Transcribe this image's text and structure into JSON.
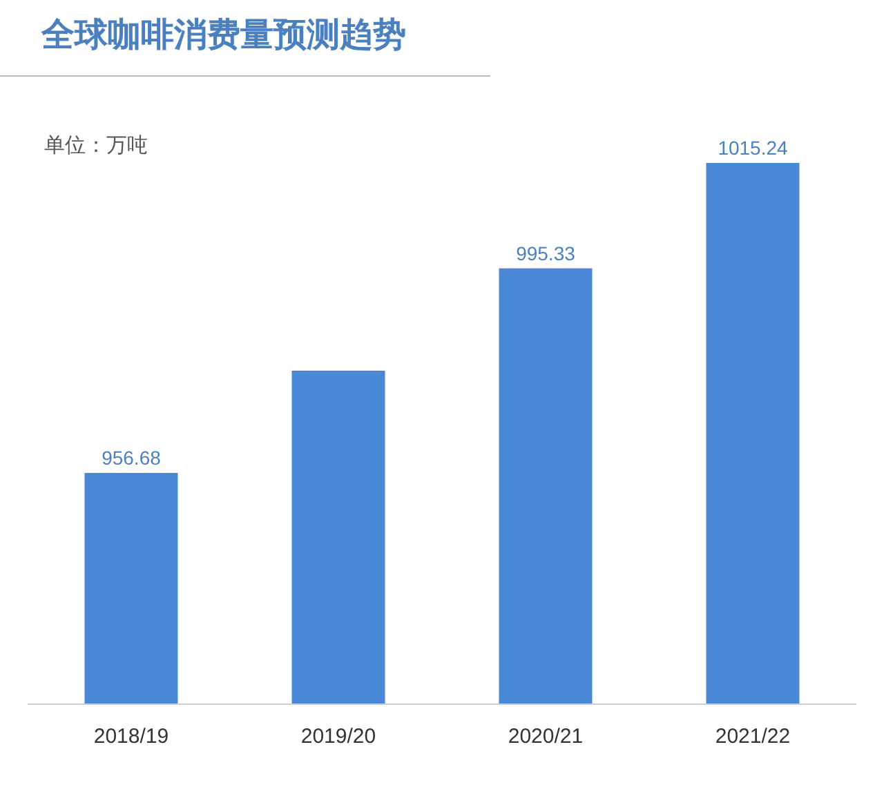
{
  "chart_data": {
    "type": "bar",
    "title": "全球咖啡消费量预测趋势",
    "annotations": [
      "单位：万吨"
    ],
    "categories": [
      "2018/19",
      "2019/20",
      "2020/21",
      "2021/22"
    ],
    "values": [
      956.68,
      976,
      995.33,
      1015.24
    ],
    "value_labels": [
      "956.68",
      null,
      "995.33",
      "1015.24"
    ],
    "color": "#4a87d6",
    "ylim": [
      913,
      1015.24
    ],
    "tick_labels": "x"
  }
}
